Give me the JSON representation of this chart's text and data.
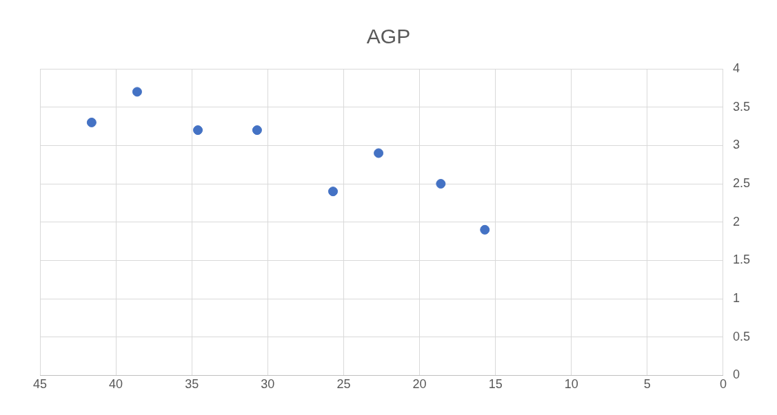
{
  "chart_data": {
    "type": "scatter",
    "title": "AGP",
    "x": [
      41.6,
      38.6,
      34.6,
      30.7,
      25.7,
      22.7,
      18.6,
      15.7
    ],
    "values": [
      3.3,
      3.7,
      3.2,
      3.2,
      2.4,
      2.9,
      2.5,
      1.9
    ],
    "color": "#4472c4",
    "marker": "circle",
    "xlim": [
      45,
      0
    ],
    "xticks": [
      45,
      40,
      35,
      30,
      25,
      20,
      15,
      10,
      5,
      0
    ],
    "ylim": [
      0,
      4
    ],
    "yticks": [
      0,
      0.5,
      1,
      1.5,
      2,
      2.5,
      3,
      3.5,
      4
    ],
    "grid": true,
    "legend": false
  }
}
